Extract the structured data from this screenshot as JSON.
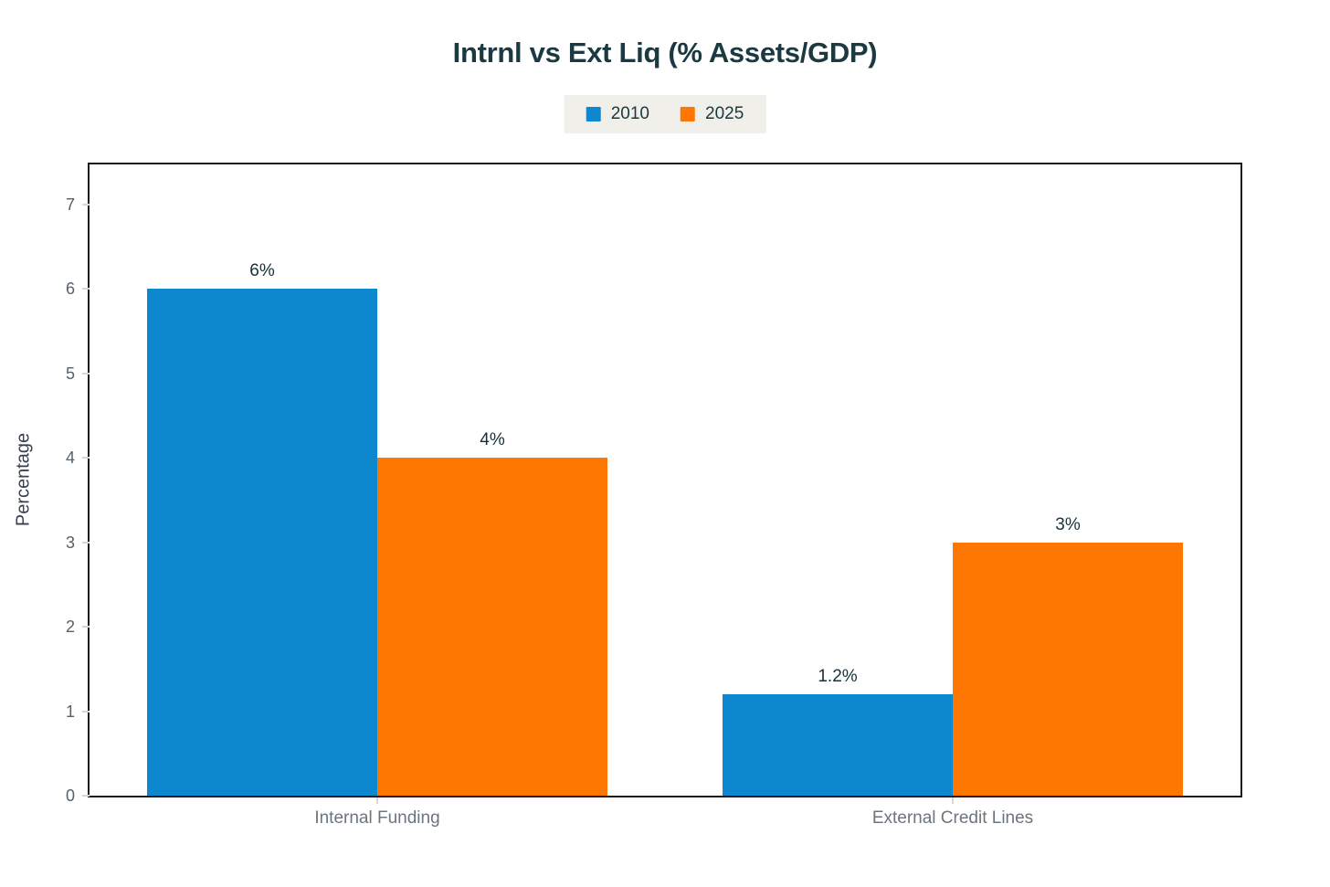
{
  "chart_data": {
    "type": "bar",
    "title": "Intrnl vs Ext Liq (% Assets/GDP)",
    "categories": [
      "Internal Funding",
      "External Credit Lines"
    ],
    "series": [
      {
        "name": "2010",
        "color": "#0d87cd",
        "values": [
          6,
          1.2
        ],
        "labels": [
          "6%",
          "1.2%"
        ]
      },
      {
        "name": "2025",
        "color": "#fd7702",
        "values": [
          4,
          3
        ],
        "labels": [
          "4%",
          "3%"
        ]
      }
    ],
    "xlabel": "",
    "ylabel": "Percentage",
    "yticks": [
      0,
      1,
      2,
      3,
      4,
      5,
      6,
      7
    ],
    "ylim": [
      0,
      7.52
    ],
    "grid": false,
    "legend_position": "top-center",
    "bar_value_labels_shown": true
  },
  "colors": {
    "series_2010": "#0d87cd",
    "series_2025": "#fd7702",
    "title_text": "#1b3940",
    "tick_text": "#55616c",
    "category_text": "#6b7480",
    "legend_background": "#f0efe9",
    "plot_border": "#1a1a1a",
    "background": "#ffffff"
  }
}
